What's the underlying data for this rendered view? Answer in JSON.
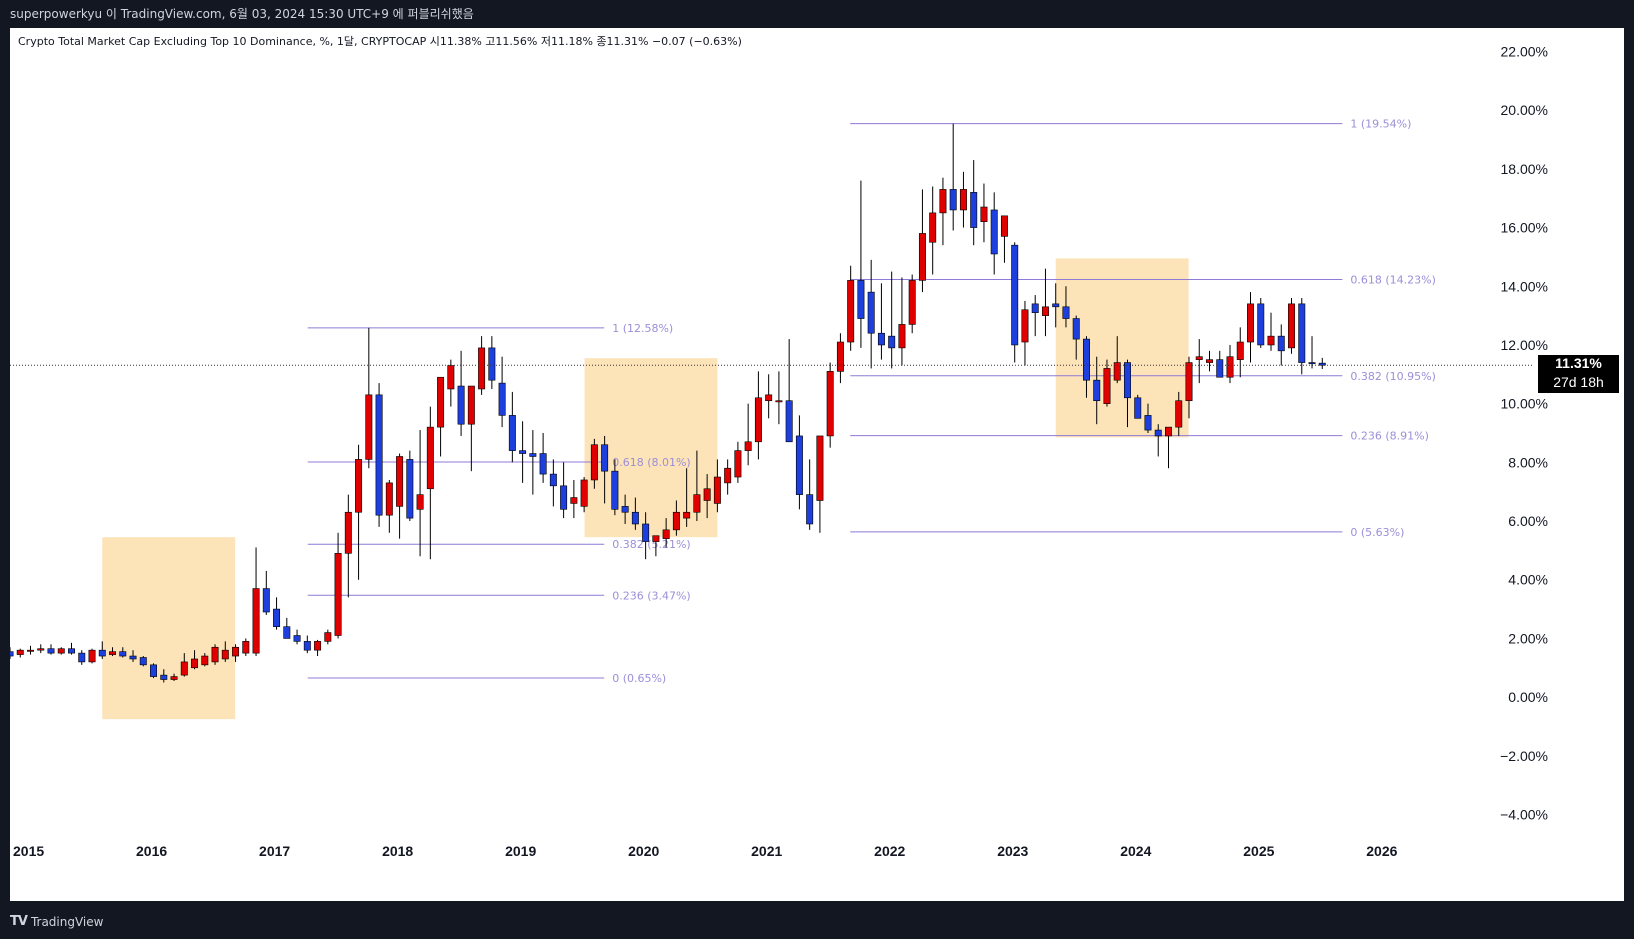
{
  "header": {
    "published_note": "superpowerkyu 이 TradingView.com, 6월 03, 2024 15:30 UTC+9 에 퍼블리쉬했음"
  },
  "legend": {
    "text": "Crypto Total Market Cap Excluding Top 10 Dominance, %, 1달, CRYPTOCAP  시11.38%  고11.56%  저11.18%  종11.31%  −0.07 (−0.63%)"
  },
  "current_price": {
    "value_label": "11.31%",
    "countdown": "27d 18h",
    "value": 11.31
  },
  "footer": {
    "brand": "TradingView"
  },
  "colors": {
    "up": "#e00000",
    "down": "#1c3fde",
    "fib_line": "#8f7ad6",
    "fib_text": "#9b8fd8",
    "box_fill": "#fde2b4",
    "price_line": "#333333",
    "axis_text": "#131722",
    "page_bg": "#131722",
    "chart_bg": "#ffffff"
  },
  "chart_data": {
    "type": "candlestick",
    "y_axis": {
      "ylim": [
        -4.8,
        22.8
      ],
      "ticks": [
        22,
        20,
        18,
        16,
        14,
        12,
        10,
        8,
        6,
        4,
        2,
        0,
        -2,
        -4
      ],
      "tick_labels": [
        "22.00%",
        "20.00%",
        "18.00%",
        "16.00%",
        "14.00%",
        "12.00%",
        "10.00%",
        "8.00%",
        "6.00%",
        "4.00%",
        "2.00%",
        "0.00%",
        "−2.00%",
        "−4.00%"
      ],
      "side": "right"
    },
    "x_axis": {
      "xlim": [
        2015.0,
        2026.9
      ],
      "ticks": [
        2015,
        2016,
        2017,
        2018,
        2019,
        2020,
        2021,
        2022,
        2023,
        2024,
        2025,
        2026
      ],
      "tick_labels": [
        "2015",
        "2016",
        "2017",
        "2018",
        "2019",
        "2020",
        "2021",
        "2022",
        "2023",
        "2024",
        "2025",
        "2026"
      ]
    },
    "grid": false,
    "first_candle": 2015.0,
    "months_per_candle": 1,
    "candles": [
      [
        1.55,
        1.7,
        1.3,
        1.4
      ],
      [
        1.45,
        1.65,
        1.35,
        1.6
      ],
      [
        1.6,
        1.75,
        1.45,
        1.6
      ],
      [
        1.6,
        1.8,
        1.5,
        1.65
      ],
      [
        1.65,
        1.8,
        1.45,
        1.5
      ],
      [
        1.5,
        1.7,
        1.45,
        1.65
      ],
      [
        1.65,
        1.85,
        1.45,
        1.5
      ],
      [
        1.5,
        1.6,
        1.1,
        1.2
      ],
      [
        1.2,
        1.65,
        1.15,
        1.6
      ],
      [
        1.6,
        1.9,
        1.3,
        1.4
      ],
      [
        1.45,
        1.7,
        1.4,
        1.55
      ],
      [
        1.55,
        1.7,
        1.35,
        1.4
      ],
      [
        1.4,
        1.6,
        1.2,
        1.3
      ],
      [
        1.35,
        1.4,
        1.05,
        1.1
      ],
      [
        1.1,
        1.15,
        0.65,
        0.7
      ],
      [
        0.75,
        0.95,
        0.5,
        0.6
      ],
      [
        0.6,
        0.8,
        0.55,
        0.7
      ],
      [
        0.75,
        1.5,
        0.7,
        1.2
      ],
      [
        1.0,
        1.6,
        0.95,
        1.3
      ],
      [
        1.1,
        1.5,
        1.05,
        1.4
      ],
      [
        1.2,
        1.8,
        1.1,
        1.7
      ],
      [
        1.3,
        1.9,
        1.2,
        1.6
      ],
      [
        1.4,
        1.8,
        1.2,
        1.7
      ],
      [
        1.5,
        2.0,
        1.4,
        1.9
      ],
      [
        1.5,
        5.1,
        1.4,
        3.7
      ],
      [
        3.7,
        4.3,
        2.8,
        2.9
      ],
      [
        3.0,
        3.4,
        2.3,
        2.4
      ],
      [
        2.4,
        2.7,
        2.0,
        2.0
      ],
      [
        2.1,
        2.3,
        1.8,
        1.9
      ],
      [
        1.9,
        2.1,
        1.5,
        1.6
      ],
      [
        1.6,
        1.95,
        1.4,
        1.9
      ],
      [
        1.9,
        2.3,
        1.8,
        2.2
      ],
      [
        2.1,
        5.6,
        2.0,
        4.9
      ],
      [
        4.9,
        6.9,
        3.4,
        6.3
      ],
      [
        6.3,
        8.6,
        4.0,
        8.1
      ],
      [
        8.1,
        12.58,
        7.8,
        10.3
      ],
      [
        10.3,
        10.7,
        5.8,
        6.2
      ],
      [
        6.2,
        7.4,
        5.6,
        7.3
      ],
      [
        6.5,
        8.3,
        5.4,
        8.2
      ],
      [
        8.1,
        8.4,
        6.0,
        6.1
      ],
      [
        6.4,
        9.1,
        4.8,
        6.9
      ],
      [
        7.1,
        9.9,
        4.7,
        9.2
      ],
      [
        9.2,
        10.9,
        8.2,
        10.9
      ],
      [
        10.5,
        11.5,
        9.9,
        11.3
      ],
      [
        10.6,
        11.8,
        8.9,
        9.3
      ],
      [
        9.3,
        10.5,
        7.7,
        10.6
      ],
      [
        10.5,
        12.3,
        10.3,
        11.9
      ],
      [
        11.9,
        12.3,
        10.5,
        10.8
      ],
      [
        10.7,
        11.6,
        9.2,
        9.6
      ],
      [
        9.6,
        10.4,
        8.0,
        8.4
      ],
      [
        8.4,
        9.4,
        7.3,
        8.3
      ],
      [
        8.3,
        9.1,
        6.9,
        8.2
      ],
      [
        8.3,
        9.0,
        7.3,
        7.6
      ],
      [
        7.6,
        8.1,
        6.5,
        7.2
      ],
      [
        7.2,
        8.0,
        6.1,
        6.4
      ],
      [
        6.6,
        7.4,
        6.1,
        6.8
      ],
      [
        6.5,
        7.5,
        6.3,
        7.4
      ],
      [
        7.4,
        8.8,
        7.1,
        8.6
      ],
      [
        8.6,
        8.9,
        6.6,
        7.7
      ],
      [
        7.7,
        8.1,
        6.2,
        6.4
      ],
      [
        6.5,
        6.9,
        5.9,
        6.3
      ],
      [
        6.3,
        6.8,
        5.7,
        5.9
      ],
      [
        5.9,
        6.3,
        4.7,
        5.3
      ],
      [
        5.3,
        5.4,
        4.8,
        5.5
      ],
      [
        5.4,
        6.1,
        5.1,
        5.7
      ],
      [
        5.7,
        6.7,
        5.5,
        6.3
      ],
      [
        6.1,
        7.8,
        5.8,
        6.3
      ],
      [
        6.3,
        8.4,
        6.0,
        6.9
      ],
      [
        6.7,
        7.6,
        6.1,
        7.1
      ],
      [
        6.6,
        8.1,
        6.3,
        7.5
      ],
      [
        7.3,
        8.1,
        6.9,
        7.8
      ],
      [
        7.5,
        8.7,
        7.3,
        8.4
      ],
      [
        8.4,
        10.0,
        7.9,
        8.7
      ],
      [
        8.7,
        11.1,
        8.1,
        10.2
      ],
      [
        10.1,
        11.0,
        9.5,
        10.3
      ],
      [
        10.1,
        11.1,
        9.3,
        10.1
      ],
      [
        10.1,
        12.2,
        8.9,
        8.7
      ],
      [
        8.9,
        9.6,
        6.4,
        6.9
      ],
      [
        6.9,
        8.1,
        5.7,
        5.9
      ],
      [
        6.7,
        8.9,
        5.6,
        8.9
      ],
      [
        8.9,
        11.4,
        8.5,
        11.1
      ],
      [
        11.1,
        12.4,
        10.7,
        12.1
      ],
      [
        12.1,
        14.7,
        11.8,
        14.2
      ],
      [
        14.2,
        17.6,
        11.9,
        12.9
      ],
      [
        13.8,
        14.9,
        11.2,
        12.4
      ],
      [
        12.4,
        14.1,
        11.5,
        12.0
      ],
      [
        12.3,
        14.5,
        11.2,
        11.9
      ],
      [
        11.9,
        14.3,
        11.3,
        12.7
      ],
      [
        12.7,
        14.4,
        12.4,
        14.2
      ],
      [
        14.2,
        17.3,
        13.8,
        15.8
      ],
      [
        15.5,
        17.4,
        14.4,
        16.5
      ],
      [
        16.5,
        17.7,
        15.4,
        17.3
      ],
      [
        17.3,
        19.54,
        15.9,
        16.6
      ],
      [
        16.6,
        17.9,
        16.0,
        17.3
      ],
      [
        17.2,
        18.3,
        15.4,
        16.0
      ],
      [
        16.2,
        17.5,
        15.5,
        16.7
      ],
      [
        16.6,
        17.2,
        14.4,
        15.1
      ],
      [
        15.7,
        16.3,
        14.8,
        16.4
      ],
      [
        15.4,
        15.5,
        11.4,
        12.0
      ],
      [
        12.1,
        13.5,
        11.3,
        13.2
      ],
      [
        13.4,
        13.7,
        12.3,
        13.1
      ],
      [
        13.0,
        14.6,
        12.3,
        13.3
      ],
      [
        13.4,
        14.1,
        12.6,
        13.3
      ],
      [
        13.3,
        14.0,
        12.6,
        12.9
      ],
      [
        12.9,
        13.0,
        11.5,
        12.2
      ],
      [
        12.2,
        12.3,
        10.2,
        10.8
      ],
      [
        10.8,
        11.6,
        9.3,
        10.1
      ],
      [
        10.0,
        11.5,
        9.9,
        11.2
      ],
      [
        10.8,
        12.3,
        10.7,
        11.4
      ],
      [
        11.4,
        11.5,
        9.2,
        10.2
      ],
      [
        10.2,
        10.3,
        9.6,
        9.5
      ],
      [
        9.6,
        10.0,
        9.0,
        9.1
      ],
      [
        9.1,
        9.3,
        8.2,
        8.9
      ],
      [
        8.9,
        9.2,
        7.8,
        9.2
      ],
      [
        9.2,
        10.4,
        8.9,
        10.1
      ],
      [
        10.1,
        11.6,
        9.5,
        11.4
      ],
      [
        11.5,
        12.2,
        10.7,
        11.6
      ],
      [
        11.4,
        11.8,
        11.1,
        11.5
      ],
      [
        11.5,
        11.8,
        10.9,
        10.9
      ],
      [
        10.9,
        12.0,
        10.7,
        11.6
      ],
      [
        11.5,
        12.6,
        10.9,
        12.1
      ],
      [
        12.1,
        13.8,
        11.4,
        13.4
      ],
      [
        13.4,
        13.6,
        11.9,
        12.0
      ],
      [
        12.0,
        13.1,
        11.8,
        12.3
      ],
      [
        12.3,
        12.7,
        11.3,
        11.8
      ],
      [
        11.9,
        13.6,
        11.7,
        13.4
      ],
      [
        13.4,
        13.6,
        11.0,
        11.4
      ],
      [
        11.4,
        12.3,
        11.2,
        11.38
      ],
      [
        11.38,
        11.56,
        11.18,
        11.31
      ]
    ],
    "fib_sets": [
      {
        "x_start": 2017.42,
        "x_end": 2019.83,
        "levels": [
          {
            "ratio": 1,
            "value": 12.58,
            "label": "1 (12.58%)"
          },
          {
            "ratio": 0.618,
            "value": 8.01,
            "label": "0.618 (8.01%)"
          },
          {
            "ratio": 0.382,
            "value": 5.21,
            "label": "0.382 (5.21%)"
          },
          {
            "ratio": 0.236,
            "value": 3.47,
            "label": "0.236 (3.47%)"
          },
          {
            "ratio": 0,
            "value": 0.65,
            "label": "0 (0.65%)"
          }
        ]
      },
      {
        "x_start": 2021.83,
        "x_end": 2025.83,
        "levels": [
          {
            "ratio": 1,
            "value": 19.54,
            "label": "1 (19.54%)"
          },
          {
            "ratio": 0.618,
            "value": 14.23,
            "label": "0.618 (14.23%)"
          },
          {
            "ratio": 0.382,
            "value": 10.95,
            "label": "0.382 (10.95%)"
          },
          {
            "ratio": 0.236,
            "value": 8.91,
            "label": "0.236 (8.91%)"
          },
          {
            "ratio": 0,
            "value": 5.63,
            "label": "0 (5.63%)"
          }
        ]
      }
    ],
    "highlight_boxes": [
      {
        "x_start": 2015.75,
        "x_end": 2016.83,
        "y_top": 5.45,
        "y_bottom": -0.75
      },
      {
        "x_start": 2019.67,
        "x_end": 2020.75,
        "y_top": 11.55,
        "y_bottom": 5.45
      },
      {
        "x_start": 2023.5,
        "x_end": 2024.58,
        "y_top": 14.95,
        "y_bottom": 8.85
      }
    ]
  }
}
